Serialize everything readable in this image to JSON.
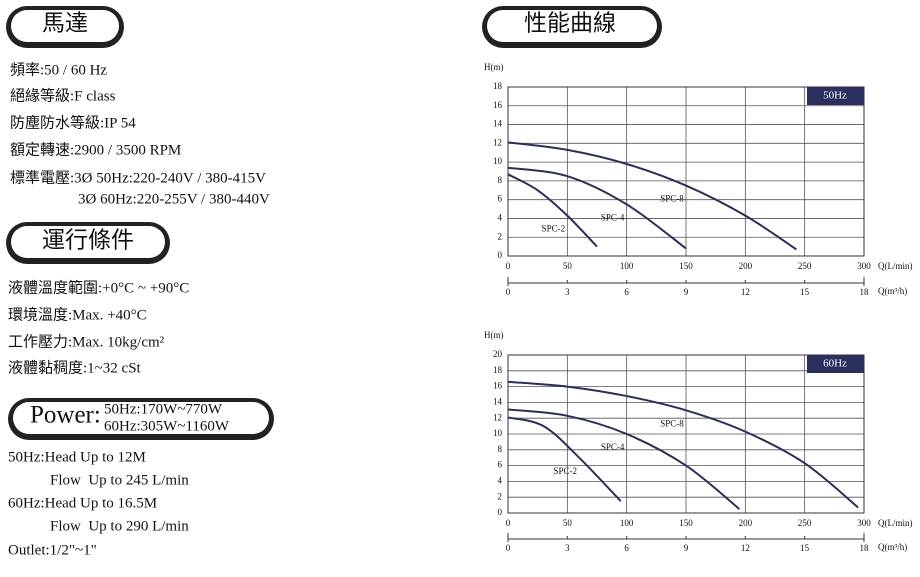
{
  "motor": {
    "title": "馬達",
    "lines": [
      "頻率:50 / 60 Hz",
      "絕緣等級:F class",
      "防塵防水等級:IP 54",
      "額定轉速:2900 / 3500 RPM",
      "標準電壓:3Ø 50Hz:220-240V / 380-415V",
      "3Ø 60Hz:220-255V / 380-440V"
    ]
  },
  "conditions": {
    "title": "運行條件",
    "lines": [
      "液體溫度範圍:+0°C ~ +90°C",
      "環境溫度:Max. +40°C",
      "工作壓力:Max. 10kg/cm²",
      "液體黏稠度:1~32 cSt"
    ]
  },
  "power": {
    "label": "Power:",
    "lines": [
      "50Hz:170W~770W",
      "60Hz:305W~1160W"
    ]
  },
  "specs": [
    "50Hz:Head Up to 12M",
    "Flow  Up to 245 L/min",
    "60Hz:Head Up to 16.5M",
    "Flow  Up to 290 L/min",
    "Outlet:1/2\"~1\""
  ],
  "curves_title": "性能曲線",
  "chart_data": [
    {
      "type": "line",
      "badge": "50Hz",
      "y_label": "H(m)",
      "x_label": "Q(L/min)",
      "x2_label": "Q(m³/h)",
      "xlim": [
        0,
        300
      ],
      "xticks": [
        0,
        50,
        100,
        150,
        200,
        250,
        300
      ],
      "ylim": [
        0,
        18
      ],
      "yticks": [
        0,
        2,
        4,
        6,
        8,
        10,
        12,
        14,
        16,
        18
      ],
      "x2lim": [
        0,
        18
      ],
      "x2ticks": [
        0,
        3,
        6,
        9,
        12,
        15,
        18
      ],
      "grid": true,
      "series": [
        {
          "name": "SPC-2",
          "color": "#2b2f5e",
          "x": [
            0,
            25,
            50,
            75
          ],
          "values": [
            8.7,
            7,
            4.3,
            1
          ]
        },
        {
          "name": "SPC-4",
          "color": "#2b2f5e",
          "x": [
            0,
            50,
            100,
            150
          ],
          "values": [
            9.4,
            8.5,
            5.5,
            0.8
          ]
        },
        {
          "name": "SPC-8",
          "color": "#2b2f5e",
          "x": [
            0,
            50,
            100,
            150,
            200,
            243
          ],
          "values": [
            12.1,
            11.3,
            9.8,
            7.5,
            4.3,
            0.7
          ]
        }
      ]
    },
    {
      "type": "line",
      "badge": "60Hz",
      "y_label": "H(m)",
      "x_label": "Q(L/min)",
      "x2_label": "Q(m³/h)",
      "xlim": [
        0,
        300
      ],
      "xticks": [
        0,
        50,
        100,
        150,
        200,
        250,
        300
      ],
      "ylim": [
        0,
        20
      ],
      "yticks": [
        0,
        2,
        4,
        6,
        8,
        10,
        12,
        14,
        16,
        18,
        20
      ],
      "x2lim": [
        0,
        18
      ],
      "x2ticks": [
        0,
        3,
        6,
        9,
        12,
        15,
        18
      ],
      "grid": true,
      "series": [
        {
          "name": "SPC-2",
          "color": "#2b2f5e",
          "x": [
            0,
            30,
            60,
            95
          ],
          "values": [
            12.1,
            11,
            7,
            1.5
          ]
        },
        {
          "name": "SPC-4",
          "color": "#2b2f5e",
          "x": [
            0,
            50,
            100,
            150,
            195
          ],
          "values": [
            13.1,
            12.3,
            10,
            6,
            0.5
          ]
        },
        {
          "name": "SPC-8",
          "color": "#2b2f5e",
          "x": [
            0,
            50,
            100,
            150,
            200,
            250,
            295
          ],
          "values": [
            16.6,
            16,
            14.8,
            13,
            10.3,
            6.3,
            0.7
          ]
        }
      ]
    }
  ]
}
